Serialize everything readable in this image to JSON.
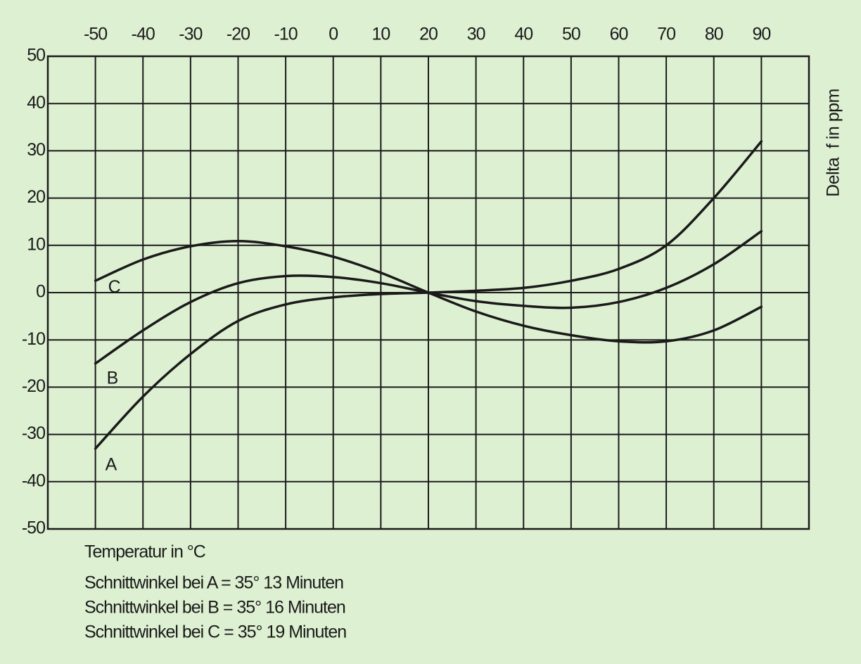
{
  "chart_data": {
    "type": "line",
    "x_label": "Temperatur in °C",
    "y_label": "Delta  f in ppm",
    "notes": [
      "Schnittwinkel bei A = 35° 13 Minuten",
      "Schnittwinkel bei B = 35° 16 Minuten",
      "Schnittwinkel bei C = 35° 19 Minuten"
    ],
    "x": [
      -50,
      -40,
      -30,
      -20,
      -10,
      0,
      10,
      20,
      30,
      40,
      50,
      60,
      70,
      80,
      90
    ],
    "series": [
      {
        "name": "A",
        "color": "#1a1a1a",
        "values": [
          -33,
          -22,
          -13,
          -6,
          -2.5,
          -1,
          -0.3,
          0,
          0.4,
          1,
          2.5,
          5,
          10,
          20,
          32
        ]
      },
      {
        "name": "B",
        "color": "#1a1a1a",
        "values": [
          -15,
          -8,
          -2,
          2,
          3.5,
          3.3,
          2,
          0,
          -1.8,
          -2.8,
          -3.2,
          -2,
          1,
          6,
          13
        ]
      },
      {
        "name": "C",
        "color": "#1a1a1a",
        "values": [
          2.5,
          7,
          9.8,
          10.9,
          9.8,
          7.6,
          4.2,
          0,
          -4,
          -7,
          -9,
          -10.3,
          -10.3,
          -8,
          -3
        ]
      }
    ],
    "xlim": [
      -60,
      100
    ],
    "ylim": [
      -50,
      50
    ],
    "xticks": [
      -50,
      -40,
      -30,
      -20,
      -10,
      0,
      10,
      20,
      30,
      40,
      50,
      60,
      70,
      80,
      90
    ],
    "yticks": [
      -50,
      -40,
      -30,
      -20,
      -10,
      0,
      10,
      20,
      30,
      40,
      50
    ],
    "grid": true
  }
}
